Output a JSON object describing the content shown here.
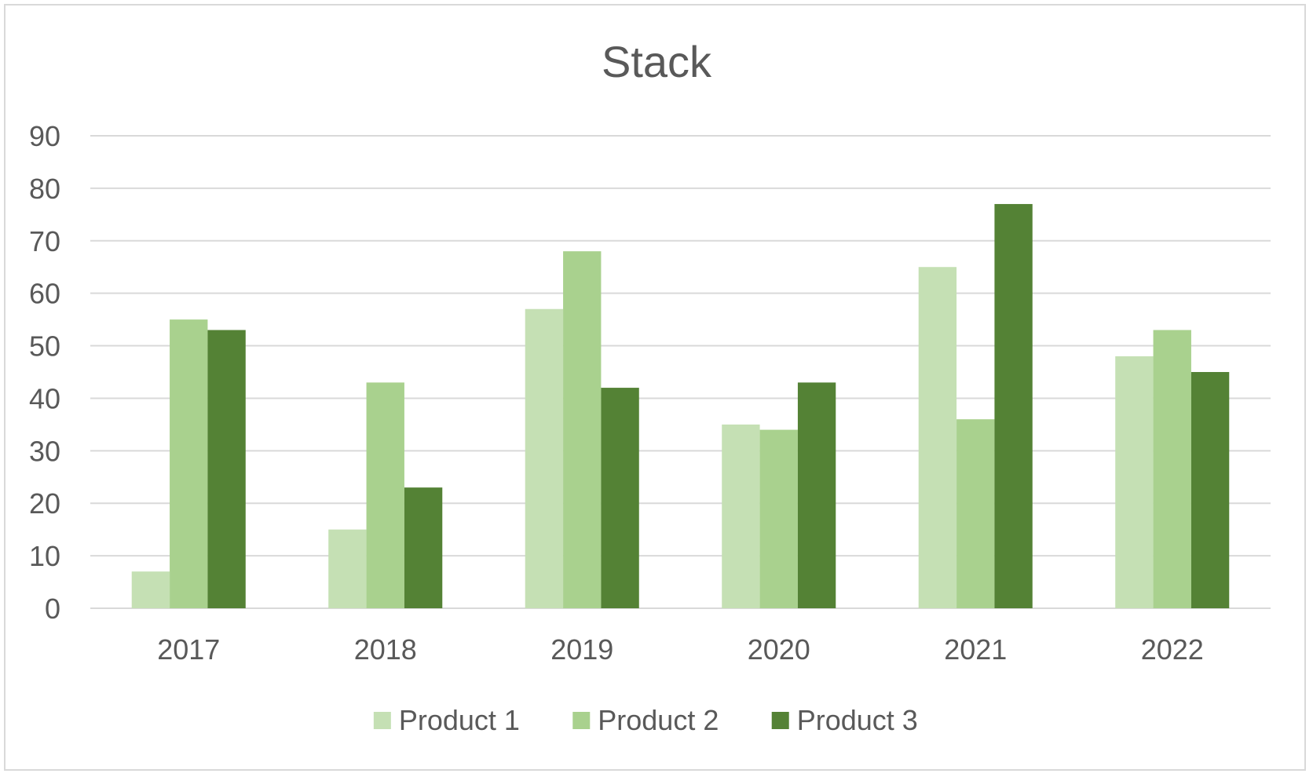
{
  "chart_data": {
    "type": "bar",
    "title": "Stack",
    "xlabel": "",
    "ylabel": "",
    "categories": [
      "2017",
      "2018",
      "2019",
      "2020",
      "2021",
      "2022"
    ],
    "series": [
      {
        "name": "Product 1",
        "color": "#c5e0b4",
        "values": [
          7,
          15,
          57,
          35,
          65,
          48
        ]
      },
      {
        "name": "Product 2",
        "color": "#a9d18e",
        "values": [
          55,
          43,
          68,
          34,
          36,
          53
        ]
      },
      {
        "name": "Product 3",
        "color": "#548235",
        "values": [
          53,
          23,
          42,
          43,
          77,
          45
        ]
      }
    ],
    "ylim": [
      0,
      90
    ],
    "yticks": [
      0,
      10,
      20,
      30,
      40,
      50,
      60,
      70,
      80,
      90
    ],
    "grid": true,
    "legend_position": "bottom",
    "colors": {
      "gridline": "#d9d9d9",
      "text": "#595959",
      "border": "#d9d9d9"
    }
  }
}
